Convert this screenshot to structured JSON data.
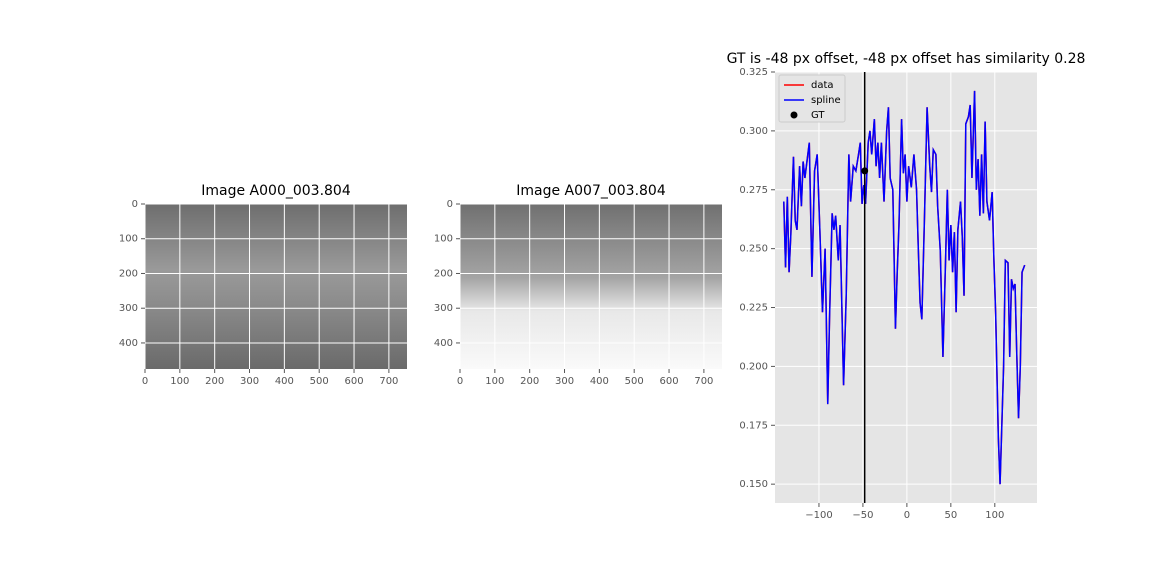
{
  "chart_data": [
    {
      "type": "image",
      "title": "Image A000_003.804",
      "xlim": [
        0,
        752
      ],
      "ylim": [
        475,
        0
      ],
      "xticks": [
        0,
        100,
        200,
        300,
        400,
        500,
        600,
        700
      ],
      "yticks": [
        0,
        100,
        200,
        300,
        400
      ],
      "grid": true
    },
    {
      "type": "image",
      "title": "Image A007_003.804",
      "xlim": [
        0,
        752
      ],
      "ylim": [
        475,
        0
      ],
      "xticks": [
        0,
        100,
        200,
        300,
        400,
        500,
        600,
        700
      ],
      "yticks": [
        0,
        100,
        200,
        300,
        400
      ],
      "grid": true
    },
    {
      "type": "line",
      "title": "GT is -48 px offset, -48 px offset has similarity 0.28",
      "xlim": [
        -150,
        148
      ],
      "ylim": [
        0.142,
        0.325
      ],
      "xticks": [
        {
          "value": -100,
          "label": "−100"
        },
        {
          "value": -50,
          "label": "−50"
        },
        0,
        50,
        100
      ],
      "yticks": [
        {
          "value": 0.15,
          "label": "0.150"
        },
        0.175,
        {
          "value": 0.2,
          "label": "0.200"
        },
        0.225,
        {
          "value": 0.25,
          "label": "0.250"
        },
        0.275,
        {
          "value": 0.3,
          "label": "0.300"
        },
        0.325
      ],
      "grid": true,
      "legend": "upper left",
      "x": [
        -140,
        -138,
        -136,
        -134,
        -132,
        -129,
        -127,
        -125,
        -122,
        -120,
        -118,
        -116,
        -114,
        -111,
        -108,
        -105,
        -102,
        -99,
        -96,
        -93,
        -90,
        -88,
        -85,
        -83,
        -81,
        -78,
        -76,
        -72,
        -69,
        -66,
        -64,
        -61,
        -58,
        -55,
        -53,
        -51,
        -49,
        -47,
        -44,
        -42,
        -40,
        -37,
        -35,
        -33,
        -31,
        -29,
        -26,
        -23,
        -21,
        -19,
        -16,
        -13,
        -11,
        -9,
        -6,
        -4,
        -2,
        0,
        2,
        5,
        8,
        11,
        13,
        15,
        17,
        20,
        23,
        26,
        28,
        30,
        33,
        35,
        38,
        41,
        44,
        46,
        48,
        50,
        52,
        54,
        56,
        58,
        61,
        63,
        65,
        67,
        70,
        72,
        74,
        77,
        79,
        81,
        83,
        85,
        87,
        89,
        91,
        94,
        97,
        99,
        101,
        104,
        106,
        108,
        110,
        112,
        115,
        117,
        119,
        121,
        123,
        125,
        127,
        129,
        131,
        134
      ],
      "series": [
        {
          "name": "data",
          "color": "#ff0000",
          "values": [
            0.27,
            0.242,
            0.272,
            0.24,
            0.256,
            0.289,
            0.262,
            0.258,
            0.285,
            0.268,
            0.287,
            0.28,
            0.286,
            0.295,
            0.238,
            0.283,
            0.29,
            0.258,
            0.223,
            0.25,
            0.184,
            0.22,
            0.265,
            0.258,
            0.264,
            0.245,
            0.26,
            0.192,
            0.23,
            0.29,
            0.27,
            0.285,
            0.283,
            0.29,
            0.295,
            0.269,
            0.277,
            0.269,
            0.295,
            0.3,
            0.29,
            0.305,
            0.285,
            0.295,
            0.28,
            0.295,
            0.27,
            0.3,
            0.31,
            0.28,
            0.275,
            0.216,
            0.24,
            0.26,
            0.305,
            0.282,
            0.29,
            0.27,
            0.285,
            0.276,
            0.29,
            0.275,
            0.25,
            0.227,
            0.22,
            0.263,
            0.31,
            0.285,
            0.274,
            0.292,
            0.29,
            0.268,
            0.249,
            0.204,
            0.245,
            0.275,
            0.245,
            0.26,
            0.24,
            0.257,
            0.223,
            0.258,
            0.27,
            0.255,
            0.23,
            0.303,
            0.306,
            0.311,
            0.28,
            0.317,
            0.275,
            0.288,
            0.264,
            0.29,
            0.265,
            0.304,
            0.27,
            0.262,
            0.274,
            0.245,
            0.222,
            0.17,
            0.15,
            0.175,
            0.2,
            0.245,
            0.244,
            0.204,
            0.237,
            0.233,
            0.235,
            0.205,
            0.178,
            0.2,
            0.24,
            0.243
          ]
        },
        {
          "name": "spline",
          "color": "#0000ff",
          "values": [
            0.27,
            0.242,
            0.272,
            0.24,
            0.256,
            0.289,
            0.262,
            0.258,
            0.285,
            0.268,
            0.287,
            0.28,
            0.286,
            0.295,
            0.238,
            0.283,
            0.29,
            0.258,
            0.223,
            0.25,
            0.184,
            0.22,
            0.265,
            0.258,
            0.264,
            0.245,
            0.26,
            0.192,
            0.23,
            0.29,
            0.27,
            0.285,
            0.283,
            0.29,
            0.295,
            0.269,
            0.277,
            0.269,
            0.295,
            0.3,
            0.29,
            0.305,
            0.285,
            0.295,
            0.28,
            0.295,
            0.27,
            0.3,
            0.31,
            0.28,
            0.275,
            0.216,
            0.24,
            0.26,
            0.305,
            0.282,
            0.29,
            0.27,
            0.285,
            0.276,
            0.29,
            0.275,
            0.25,
            0.227,
            0.22,
            0.263,
            0.31,
            0.285,
            0.274,
            0.292,
            0.29,
            0.268,
            0.249,
            0.204,
            0.245,
            0.275,
            0.245,
            0.26,
            0.24,
            0.257,
            0.223,
            0.258,
            0.27,
            0.255,
            0.23,
            0.303,
            0.306,
            0.311,
            0.28,
            0.317,
            0.275,
            0.288,
            0.264,
            0.29,
            0.265,
            0.304,
            0.27,
            0.262,
            0.274,
            0.245,
            0.222,
            0.17,
            0.15,
            0.175,
            0.2,
            0.245,
            0.244,
            0.204,
            0.237,
            0.233,
            0.235,
            0.205,
            0.178,
            0.2,
            0.24,
            0.243
          ]
        }
      ],
      "points": {
        "name": "GT",
        "x": [
          -48
        ],
        "y": [
          0.283
        ],
        "color": "#000000"
      },
      "vline": -48
    }
  ]
}
